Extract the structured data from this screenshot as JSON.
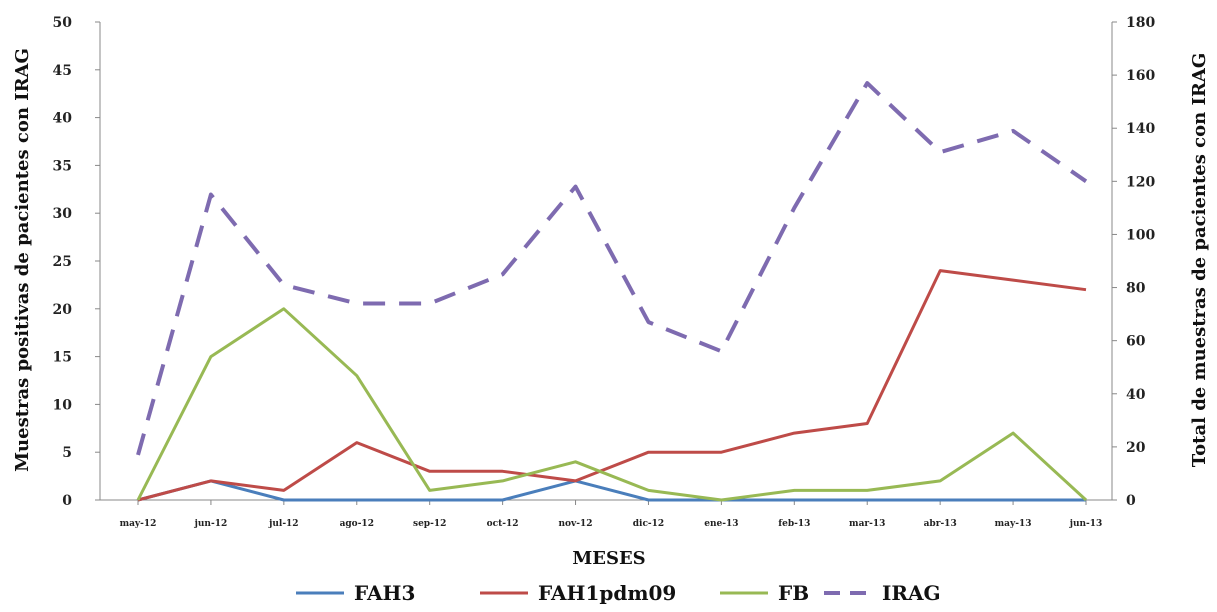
{
  "chart_data": {
    "type": "line",
    "categories": [
      "may-12",
      "jun-12",
      "jul-12",
      "ago-12",
      "sep-12",
      "oct-12",
      "nov-12",
      "dic-12",
      "ene-13",
      "feb-13",
      "mar-13",
      "abr-13",
      "may-13",
      "jun-13"
    ],
    "xlabel": "MESES",
    "ylabel": "Muestras positivas  de pacientes con IRAG",
    "y2label": "Total de muestras de pacientes con IRAG",
    "ylim": [
      0,
      50
    ],
    "y2lim": [
      0,
      180
    ],
    "yticks": [
      0,
      5,
      10,
      15,
      20,
      25,
      30,
      35,
      40,
      45,
      50
    ],
    "y2ticks": [
      0,
      20,
      40,
      60,
      80,
      100,
      120,
      140,
      160,
      180
    ],
    "legend_position": "bottom",
    "series": [
      {
        "name": "FAH3",
        "axis": "left",
        "color": "#4a7ebb",
        "dash": false,
        "values": [
          0,
          2,
          0,
          0,
          0,
          0,
          2,
          0,
          0,
          0,
          0,
          0,
          0,
          0
        ]
      },
      {
        "name": "FAH1pdm09",
        "axis": "left",
        "color": "#be4b48",
        "dash": false,
        "values": [
          0,
          2,
          1,
          6,
          3,
          3,
          2,
          5,
          5,
          7,
          8,
          24,
          23,
          22
        ]
      },
      {
        "name": "FB",
        "axis": "left",
        "color": "#98b954",
        "dash": false,
        "values": [
          0,
          15,
          20,
          13,
          1,
          2,
          4,
          1,
          0,
          1,
          1,
          2,
          7,
          0
        ]
      },
      {
        "name": "IRAG",
        "axis": "right",
        "color": "#7e6bb0",
        "dash": true,
        "values": [
          17,
          115,
          81,
          74,
          74,
          85,
          118,
          67,
          56,
          110,
          157,
          131,
          139,
          120
        ]
      }
    ]
  }
}
